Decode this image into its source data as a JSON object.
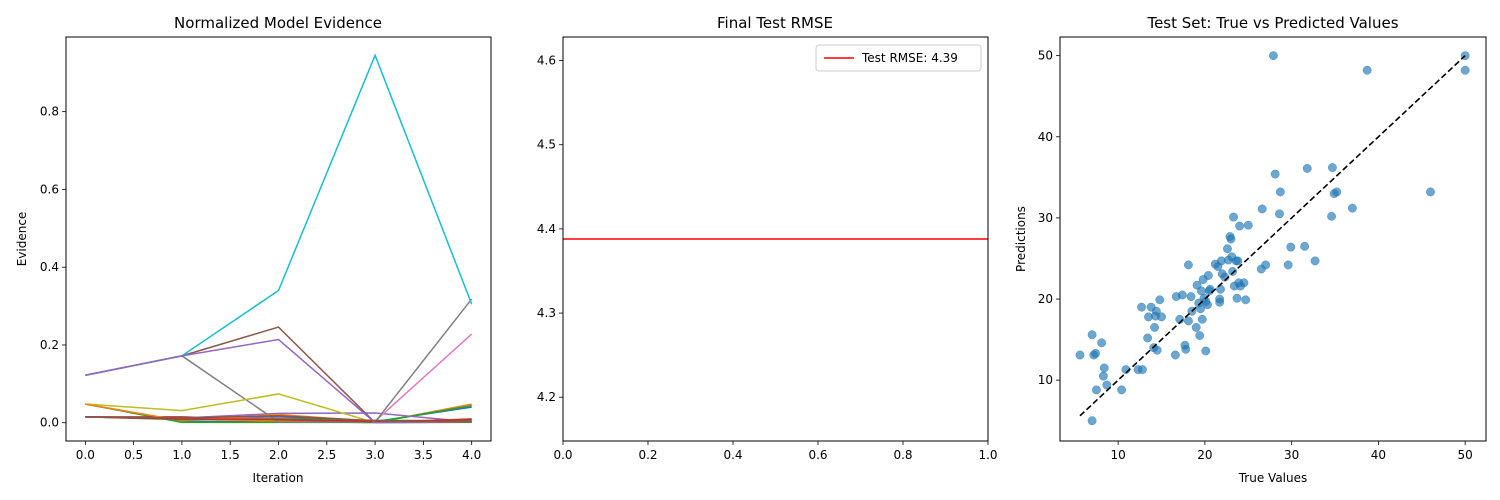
{
  "colors": {
    "tab": [
      "#1f77b4",
      "#ff7f0e",
      "#2ca02c",
      "#d62728",
      "#9467bd",
      "#8c564b",
      "#e377c2",
      "#7f7f7f",
      "#bcbd22",
      "#17becf"
    ],
    "rmse_line": "#ff0000",
    "scatter": "#1f77b4",
    "ideal_line": "#000000"
  },
  "chart_data": [
    {
      "type": "line",
      "title": "Normalized Model Evidence",
      "xlabel": "Iteration",
      "ylabel": "Evidence",
      "xlim": [
        -0.2,
        4.2
      ],
      "ylim": [
        -0.047,
        0.992
      ],
      "xticks": [
        0.0,
        0.5,
        1.0,
        1.5,
        2.0,
        2.5,
        3.0,
        3.5,
        4.0
      ],
      "xtick_labels": [
        "0.0",
        "0.5",
        "1.0",
        "1.5",
        "2.0",
        "2.5",
        "3.0",
        "3.5",
        "4.0"
      ],
      "yticks": [
        0.0,
        0.2,
        0.4,
        0.6,
        0.8
      ],
      "ytick_labels": [
        "0.0",
        "0.2",
        "0.4",
        "0.6",
        "0.8"
      ],
      "x": [
        0,
        1,
        2,
        3,
        4
      ],
      "series": [
        {
          "values": [
            0.048,
            0.003,
            0.003,
            0.003,
            0.04
          ]
        },
        {
          "values": [
            0.015,
            0.01,
            0.004,
            0.0,
            0.048
          ]
        },
        {
          "values": [
            0.048,
            0.001,
            0.001,
            0.001,
            0.044
          ]
        },
        {
          "values": [
            0.015,
            0.015,
            0.008,
            0.002,
            0.005
          ]
        },
        {
          "values": [
            0.015,
            0.012,
            0.024,
            0.025,
            0.002
          ]
        },
        {
          "values": [
            0.122,
            0.172,
            0.246,
            0.0,
            0.01
          ]
        },
        {
          "values": [
            0.015,
            0.01,
            0.012,
            0.004,
            0.228
          ]
        },
        {
          "values": [
            0.122,
            0.172,
            0.002,
            0.002,
            0.318
          ]
        },
        {
          "values": [
            0.048,
            0.031,
            0.074,
            0.0,
            0.001
          ]
        },
        {
          "values": [
            0.122,
            0.172,
            0.34,
            0.945,
            0.305
          ]
        },
        {
          "values": [
            0.015,
            0.012,
            0.016,
            0.002,
            0.002
          ]
        },
        {
          "values": [
            0.048,
            0.005,
            0.021,
            0.003,
            0.003
          ]
        },
        {
          "values": [
            0.015,
            0.008,
            0.01,
            0.006,
            0.005
          ]
        },
        {
          "values": [
            0.015,
            0.01,
            0.008,
            0.003,
            0.008
          ]
        },
        {
          "values": [
            0.122,
            0.172,
            0.214,
            0.0,
            0.002
          ]
        },
        {
          "values": [
            0.015,
            0.012,
            0.018,
            0.005,
            0.002
          ]
        }
      ]
    },
    {
      "type": "line",
      "title": "Final Test RMSE",
      "xlim": [
        0,
        1
      ],
      "ylim": [
        4.148,
        4.628
      ],
      "xticks": [
        0.0,
        0.2,
        0.4,
        0.6,
        0.8,
        1.0
      ],
      "xtick_labels": [
        "0.0",
        "0.2",
        "0.4",
        "0.6",
        "0.8",
        "1.0"
      ],
      "yticks": [
        4.2,
        4.3,
        4.4,
        4.5,
        4.6
      ],
      "ytick_labels": [
        "4.2",
        "4.3",
        "4.4",
        "4.5",
        "4.6"
      ],
      "hline": 4.388,
      "legend": "Test RMSE: 4.39",
      "legend_position": "upper right"
    },
    {
      "type": "scatter",
      "title": "Test Set: True vs Predicted Values",
      "xlabel": "True Values",
      "ylabel": "Predictions",
      "xlim": [
        3.3,
        52.4
      ],
      "ylim": [
        2.5,
        52.3
      ],
      "xticks": [
        10,
        20,
        30,
        40,
        50
      ],
      "xtick_labels": [
        "10",
        "20",
        "30",
        "40",
        "50"
      ],
      "yticks": [
        10,
        20,
        30,
        40,
        50
      ],
      "ytick_labels": [
        "10",
        "20",
        "30",
        "40",
        "50"
      ],
      "ideal_line": [
        [
          5.6,
          5.6
        ],
        [
          50,
          50
        ]
      ],
      "points": [
        [
          5.6,
          13.1
        ],
        [
          7.0,
          15.6
        ],
        [
          7.0,
          5.0
        ],
        [
          7.2,
          13.1
        ],
        [
          7.4,
          13.3
        ],
        [
          7.5,
          8.8
        ],
        [
          8.1,
          14.6
        ],
        [
          8.3,
          10.5
        ],
        [
          8.4,
          11.5
        ],
        [
          8.7,
          9.4
        ],
        [
          10.4,
          8.8
        ],
        [
          10.9,
          11.3
        ],
        [
          12.3,
          11.3
        ],
        [
          12.7,
          19.0
        ],
        [
          12.8,
          11.3
        ],
        [
          13.4,
          15.2
        ],
        [
          13.5,
          17.8
        ],
        [
          13.8,
          19.0
        ],
        [
          14.1,
          14.0
        ],
        [
          14.2,
          16.5
        ],
        [
          14.3,
          17.9
        ],
        [
          14.4,
          18.5
        ],
        [
          14.5,
          13.7
        ],
        [
          14.8,
          19.9
        ],
        [
          15.0,
          17.8
        ],
        [
          16.6,
          13.1
        ],
        [
          16.7,
          20.3
        ],
        [
          17.1,
          17.5
        ],
        [
          17.4,
          20.5
        ],
        [
          17.7,
          14.3
        ],
        [
          17.8,
          13.8
        ],
        [
          18.1,
          17.3
        ],
        [
          18.1,
          24.2
        ],
        [
          18.4,
          20.3
        ],
        [
          18.5,
          18.5
        ],
        [
          19.0,
          16.5
        ],
        [
          19.1,
          21.7
        ],
        [
          19.3,
          19.5
        ],
        [
          19.4,
          15.5
        ],
        [
          19.5,
          18.8
        ],
        [
          19.6,
          21.0
        ],
        [
          19.7,
          17.5
        ],
        [
          19.8,
          22.4
        ],
        [
          19.9,
          20.1
        ],
        [
          20.1,
          13.6
        ],
        [
          20.1,
          19.7
        ],
        [
          20.3,
          19.3
        ],
        [
          20.4,
          22.9
        ],
        [
          20.5,
          21.0
        ],
        [
          20.6,
          21.2
        ],
        [
          21.2,
          24.3
        ],
        [
          21.5,
          24.0
        ],
        [
          21.7,
          20.0
        ],
        [
          21.7,
          19.6
        ],
        [
          21.8,
          21.2
        ],
        [
          21.9,
          24.7
        ],
        [
          22.0,
          23.1
        ],
        [
          22.3,
          22.7
        ],
        [
          22.6,
          26.2
        ],
        [
          22.7,
          24.8
        ],
        [
          22.9,
          27.7
        ],
        [
          23.0,
          27.4
        ],
        [
          23.1,
          25.2
        ],
        [
          23.2,
          23.4
        ],
        [
          23.3,
          30.1
        ],
        [
          23.4,
          21.6
        ],
        [
          23.6,
          24.7
        ],
        [
          23.7,
          20.1
        ],
        [
          23.8,
          24.7
        ],
        [
          23.9,
          22.0
        ],
        [
          24.0,
          29.0
        ],
        [
          24.1,
          21.6
        ],
        [
          24.5,
          22.0
        ],
        [
          24.7,
          19.9
        ],
        [
          25.0,
          29.1
        ],
        [
          26.5,
          23.7
        ],
        [
          26.6,
          31.1
        ],
        [
          27.0,
          24.2
        ],
        [
          27.9,
          50.0
        ],
        [
          28.1,
          35.4
        ],
        [
          28.6,
          30.5
        ],
        [
          28.7,
          33.2
        ],
        [
          29.6,
          24.2
        ],
        [
          29.9,
          26.4
        ],
        [
          31.5,
          26.5
        ],
        [
          31.8,
          36.1
        ],
        [
          32.7,
          24.7
        ],
        [
          34.6,
          30.2
        ],
        [
          34.7,
          36.2
        ],
        [
          34.9,
          33.0
        ],
        [
          35.2,
          33.2
        ],
        [
          37.0,
          31.2
        ],
        [
          38.7,
          48.2
        ],
        [
          46.0,
          33.2
        ],
        [
          50.0,
          48.2
        ],
        [
          50.0,
          50.0
        ]
      ]
    }
  ]
}
